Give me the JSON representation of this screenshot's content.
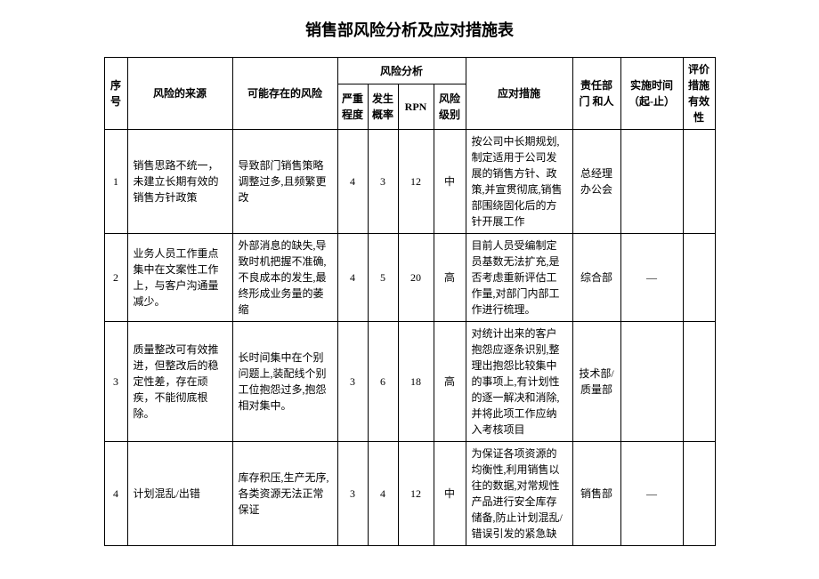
{
  "title": "销售部风险分析及应对措施表",
  "headers": {
    "seq": "序号",
    "source": "风险的来源",
    "risk": "可能存在的风险",
    "analysis_group": "风险分析",
    "severity": "严重程度",
    "probability": "发生概率",
    "rpn": "RPN",
    "level": "风险级别",
    "measures": "应对措施",
    "responsible": "责任部门\n和人",
    "time": "实施时间\n（起-止）",
    "evaluation": "评价措施有效性"
  },
  "rows": [
    {
      "seq": "1",
      "source": "销售思路不统一，未建立长期有效的销售方针政策",
      "risk": "导致部门销售策略调整过多,且频繁更改",
      "severity": "4",
      "probability": "3",
      "rpn": "12",
      "level": "中",
      "measures": "按公司中长期规划,制定适用于公司发展的销售方针、政策,并宣贯彻底,销售部围绕固化后的方针开展工作",
      "responsible": "总经理办公会",
      "time": "",
      "evaluation": ""
    },
    {
      "seq": "2",
      "source": "业务人员工作重点集中在文案性工作上，与客户沟通量减少。",
      "risk": "外部消息的缺失,导致时机把握不准确,不良成本的发生,最终形成业务量的萎缩",
      "severity": "4",
      "probability": "5",
      "rpn": "20",
      "level": "高",
      "measures": "目前人员受编制定员基数无法扩充,是否考虑重新评估工作量,对部门内部工作进行梳理。",
      "responsible": "综合部",
      "time": "—",
      "evaluation": ""
    },
    {
      "seq": "3",
      "source": "质量整改可有效推进，但整改后的稳定性差，存在顽疾，不能彻底根除。",
      "risk": "长时间集中在个别问题上,装配线个别工位抱怨过多,抱怨相对集中。",
      "severity": "3",
      "probability": "6",
      "rpn": "18",
      "level": "高",
      "measures": "对统计出来的客户抱怨应逐条识别,整理出抱怨比较集中的事项上,有计划性的逐一解决和消除,并将此项工作应纳入考核项目",
      "responsible": "技术部/质量部",
      "time": "",
      "evaluation": ""
    },
    {
      "seq": "4",
      "source": "计划混乱/出错",
      "risk": "库存积压,生产无序,各类资源无法正常保证",
      "severity": "3",
      "probability": "4",
      "rpn": "12",
      "level": "中",
      "measures": "为保证各项资源的均衡性,利用销售以往的数据,对常规性产品进行安全库存储备,防止计划混乱/错误引发的紧急缺",
      "responsible": "销售部",
      "time": "—",
      "evaluation": ""
    }
  ]
}
